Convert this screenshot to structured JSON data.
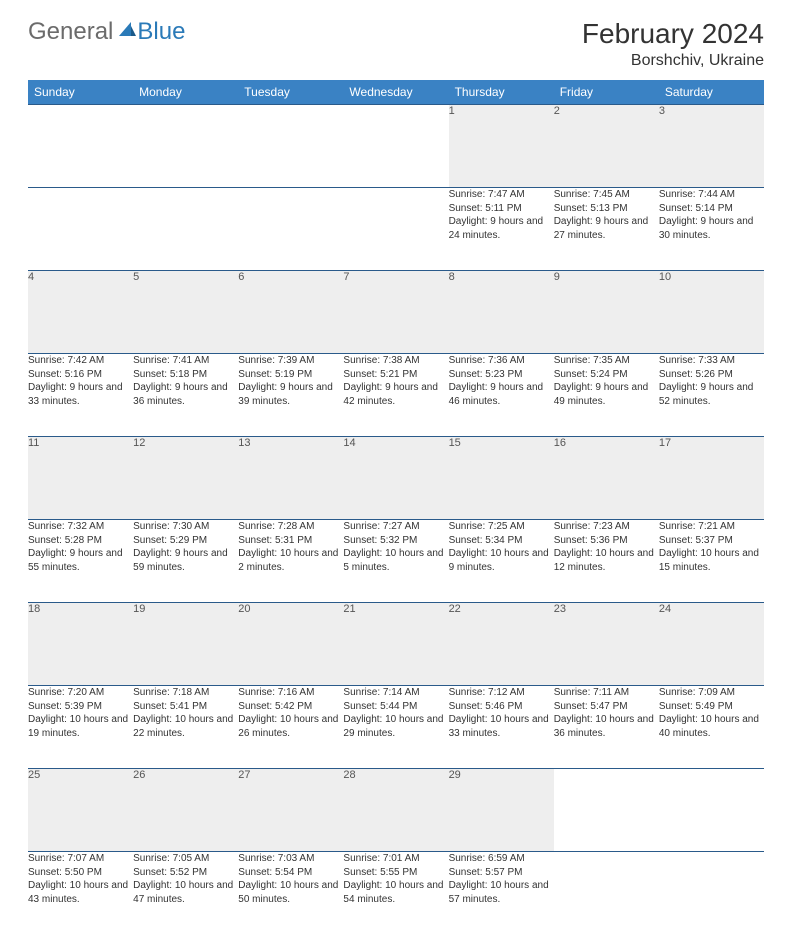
{
  "logo": {
    "general": "General",
    "blue": "Blue"
  },
  "title": "February 2024",
  "location": "Borshchiv, Ukraine",
  "weekdays": [
    "Sunday",
    "Monday",
    "Tuesday",
    "Wednesday",
    "Thursday",
    "Friday",
    "Saturday"
  ],
  "colors": {
    "header_bg": "#3a82c4",
    "row_border": "#2a5a8a",
    "daynum_bg": "#eeeeee",
    "logo_gray": "#6b6b6b",
    "logo_blue": "#2a7ab8"
  },
  "weeks": [
    [
      null,
      null,
      null,
      null,
      {
        "n": "1",
        "sr": "Sunrise: 7:47 AM",
        "ss": "Sunset: 5:11 PM",
        "dl": "Daylight: 9 hours and 24 minutes."
      },
      {
        "n": "2",
        "sr": "Sunrise: 7:45 AM",
        "ss": "Sunset: 5:13 PM",
        "dl": "Daylight: 9 hours and 27 minutes."
      },
      {
        "n": "3",
        "sr": "Sunrise: 7:44 AM",
        "ss": "Sunset: 5:14 PM",
        "dl": "Daylight: 9 hours and 30 minutes."
      }
    ],
    [
      {
        "n": "4",
        "sr": "Sunrise: 7:42 AM",
        "ss": "Sunset: 5:16 PM",
        "dl": "Daylight: 9 hours and 33 minutes."
      },
      {
        "n": "5",
        "sr": "Sunrise: 7:41 AM",
        "ss": "Sunset: 5:18 PM",
        "dl": "Daylight: 9 hours and 36 minutes."
      },
      {
        "n": "6",
        "sr": "Sunrise: 7:39 AM",
        "ss": "Sunset: 5:19 PM",
        "dl": "Daylight: 9 hours and 39 minutes."
      },
      {
        "n": "7",
        "sr": "Sunrise: 7:38 AM",
        "ss": "Sunset: 5:21 PM",
        "dl": "Daylight: 9 hours and 42 minutes."
      },
      {
        "n": "8",
        "sr": "Sunrise: 7:36 AM",
        "ss": "Sunset: 5:23 PM",
        "dl": "Daylight: 9 hours and 46 minutes."
      },
      {
        "n": "9",
        "sr": "Sunrise: 7:35 AM",
        "ss": "Sunset: 5:24 PM",
        "dl": "Daylight: 9 hours and 49 minutes."
      },
      {
        "n": "10",
        "sr": "Sunrise: 7:33 AM",
        "ss": "Sunset: 5:26 PM",
        "dl": "Daylight: 9 hours and 52 minutes."
      }
    ],
    [
      {
        "n": "11",
        "sr": "Sunrise: 7:32 AM",
        "ss": "Sunset: 5:28 PM",
        "dl": "Daylight: 9 hours and 55 minutes."
      },
      {
        "n": "12",
        "sr": "Sunrise: 7:30 AM",
        "ss": "Sunset: 5:29 PM",
        "dl": "Daylight: 9 hours and 59 minutes."
      },
      {
        "n": "13",
        "sr": "Sunrise: 7:28 AM",
        "ss": "Sunset: 5:31 PM",
        "dl": "Daylight: 10 hours and 2 minutes."
      },
      {
        "n": "14",
        "sr": "Sunrise: 7:27 AM",
        "ss": "Sunset: 5:32 PM",
        "dl": "Daylight: 10 hours and 5 minutes."
      },
      {
        "n": "15",
        "sr": "Sunrise: 7:25 AM",
        "ss": "Sunset: 5:34 PM",
        "dl": "Daylight: 10 hours and 9 minutes."
      },
      {
        "n": "16",
        "sr": "Sunrise: 7:23 AM",
        "ss": "Sunset: 5:36 PM",
        "dl": "Daylight: 10 hours and 12 minutes."
      },
      {
        "n": "17",
        "sr": "Sunrise: 7:21 AM",
        "ss": "Sunset: 5:37 PM",
        "dl": "Daylight: 10 hours and 15 minutes."
      }
    ],
    [
      {
        "n": "18",
        "sr": "Sunrise: 7:20 AM",
        "ss": "Sunset: 5:39 PM",
        "dl": "Daylight: 10 hours and 19 minutes."
      },
      {
        "n": "19",
        "sr": "Sunrise: 7:18 AM",
        "ss": "Sunset: 5:41 PM",
        "dl": "Daylight: 10 hours and 22 minutes."
      },
      {
        "n": "20",
        "sr": "Sunrise: 7:16 AM",
        "ss": "Sunset: 5:42 PM",
        "dl": "Daylight: 10 hours and 26 minutes."
      },
      {
        "n": "21",
        "sr": "Sunrise: 7:14 AM",
        "ss": "Sunset: 5:44 PM",
        "dl": "Daylight: 10 hours and 29 minutes."
      },
      {
        "n": "22",
        "sr": "Sunrise: 7:12 AM",
        "ss": "Sunset: 5:46 PM",
        "dl": "Daylight: 10 hours and 33 minutes."
      },
      {
        "n": "23",
        "sr": "Sunrise: 7:11 AM",
        "ss": "Sunset: 5:47 PM",
        "dl": "Daylight: 10 hours and 36 minutes."
      },
      {
        "n": "24",
        "sr": "Sunrise: 7:09 AM",
        "ss": "Sunset: 5:49 PM",
        "dl": "Daylight: 10 hours and 40 minutes."
      }
    ],
    [
      {
        "n": "25",
        "sr": "Sunrise: 7:07 AM",
        "ss": "Sunset: 5:50 PM",
        "dl": "Daylight: 10 hours and 43 minutes."
      },
      {
        "n": "26",
        "sr": "Sunrise: 7:05 AM",
        "ss": "Sunset: 5:52 PM",
        "dl": "Daylight: 10 hours and 47 minutes."
      },
      {
        "n": "27",
        "sr": "Sunrise: 7:03 AM",
        "ss": "Sunset: 5:54 PM",
        "dl": "Daylight: 10 hours and 50 minutes."
      },
      {
        "n": "28",
        "sr": "Sunrise: 7:01 AM",
        "ss": "Sunset: 5:55 PM",
        "dl": "Daylight: 10 hours and 54 minutes."
      },
      {
        "n": "29",
        "sr": "Sunrise: 6:59 AM",
        "ss": "Sunset: 5:57 PM",
        "dl": "Daylight: 10 hours and 57 minutes."
      },
      null,
      null
    ]
  ]
}
